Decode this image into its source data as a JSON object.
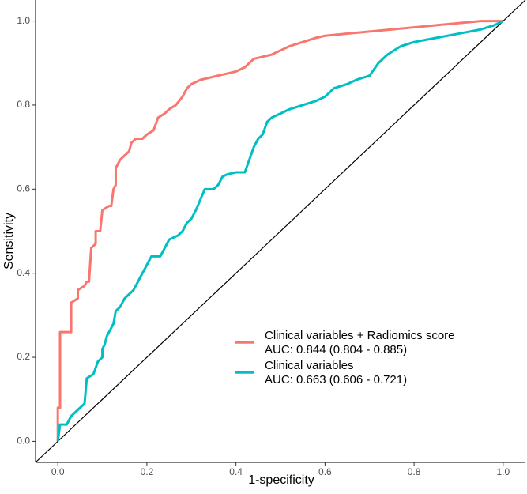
{
  "chart_data": {
    "type": "line",
    "x_label": "1-specificity",
    "y_label": "Sensitivity",
    "xlim": [
      -0.05,
      1.05
    ],
    "ylim": [
      -0.05,
      1.05
    ],
    "xticks": [
      {
        "value": 0,
        "label": "0.0"
      },
      0.2,
      0.4,
      0.6,
      0.8,
      {
        "value": 1,
        "label": "1.0"
      }
    ],
    "yticks": [
      {
        "value": 0,
        "label": "0.0"
      },
      0.2,
      0.4,
      0.6,
      0.8,
      {
        "value": 1,
        "label": "1.0"
      }
    ],
    "grid": false,
    "diagonal": true,
    "legend": "bottom-right",
    "series": [
      {
        "name": "Clinical variables + Radiomics score",
        "auc": "AUC: 0.844 (0.804 - 0.885)",
        "color": "#f8766d",
        "x": [
          0,
          0,
          0.005,
          0.005,
          0.03,
          0.03,
          0.045,
          0.045,
          0.06,
          0.065,
          0.07,
          0.075,
          0.085,
          0.085,
          0.095,
          0.1,
          0.115,
          0.12,
          0.125,
          0.13,
          0.13,
          0.14,
          0.15,
          0.16,
          0.165,
          0.175,
          0.19,
          0.2,
          0.215,
          0.225,
          0.24,
          0.25,
          0.265,
          0.28,
          0.29,
          0.3,
          0.32,
          0.34,
          0.36,
          0.38,
          0.4,
          0.42,
          0.43,
          0.44,
          0.46,
          0.48,
          0.5,
          0.52,
          0.55,
          0.58,
          0.6,
          0.65,
          0.7,
          0.75,
          0.8,
          0.85,
          0.9,
          0.95,
          1
        ],
        "values": [
          0,
          0.08,
          0.08,
          0.26,
          0.26,
          0.33,
          0.34,
          0.36,
          0.37,
          0.38,
          0.38,
          0.46,
          0.47,
          0.5,
          0.5,
          0.55,
          0.56,
          0.56,
          0.6,
          0.61,
          0.65,
          0.67,
          0.68,
          0.69,
          0.71,
          0.72,
          0.72,
          0.73,
          0.74,
          0.77,
          0.78,
          0.79,
          0.8,
          0.82,
          0.84,
          0.85,
          0.86,
          0.865,
          0.87,
          0.875,
          0.88,
          0.89,
          0.9,
          0.91,
          0.915,
          0.92,
          0.93,
          0.94,
          0.95,
          0.96,
          0.965,
          0.97,
          0.975,
          0.98,
          0.985,
          0.99,
          0.995,
          1,
          1
        ]
      },
      {
        "name": "Clinical variables",
        "auc": "AUC: 0.663 (0.606 - 0.721)",
        "color": "#00bfc4",
        "x": [
          0,
          0.005,
          0.02,
          0.03,
          0.05,
          0.06,
          0.065,
          0.08,
          0.09,
          0.1,
          0.1,
          0.105,
          0.11,
          0.12,
          0.125,
          0.13,
          0.14,
          0.15,
          0.16,
          0.17,
          0.18,
          0.19,
          0.2,
          0.21,
          0.23,
          0.24,
          0.25,
          0.27,
          0.28,
          0.29,
          0.3,
          0.31,
          0.33,
          0.35,
          0.36,
          0.37,
          0.38,
          0.4,
          0.42,
          0.43,
          0.44,
          0.45,
          0.46,
          0.47,
          0.48,
          0.5,
          0.52,
          0.55,
          0.58,
          0.6,
          0.62,
          0.65,
          0.67,
          0.7,
          0.72,
          0.74,
          0.77,
          0.8,
          0.85,
          0.9,
          0.95,
          0.98,
          1
        ],
        "values": [
          0,
          0.04,
          0.04,
          0.06,
          0.08,
          0.09,
          0.15,
          0.16,
          0.19,
          0.2,
          0.22,
          0.23,
          0.25,
          0.27,
          0.28,
          0.31,
          0.32,
          0.34,
          0.35,
          0.36,
          0.38,
          0.4,
          0.42,
          0.44,
          0.44,
          0.46,
          0.48,
          0.49,
          0.5,
          0.52,
          0.53,
          0.55,
          0.6,
          0.6,
          0.61,
          0.63,
          0.635,
          0.64,
          0.64,
          0.67,
          0.7,
          0.72,
          0.73,
          0.76,
          0.77,
          0.78,
          0.79,
          0.8,
          0.81,
          0.82,
          0.84,
          0.85,
          0.86,
          0.87,
          0.9,
          0.92,
          0.94,
          0.95,
          0.96,
          0.97,
          0.98,
          0.99,
          1
        ]
      }
    ]
  }
}
